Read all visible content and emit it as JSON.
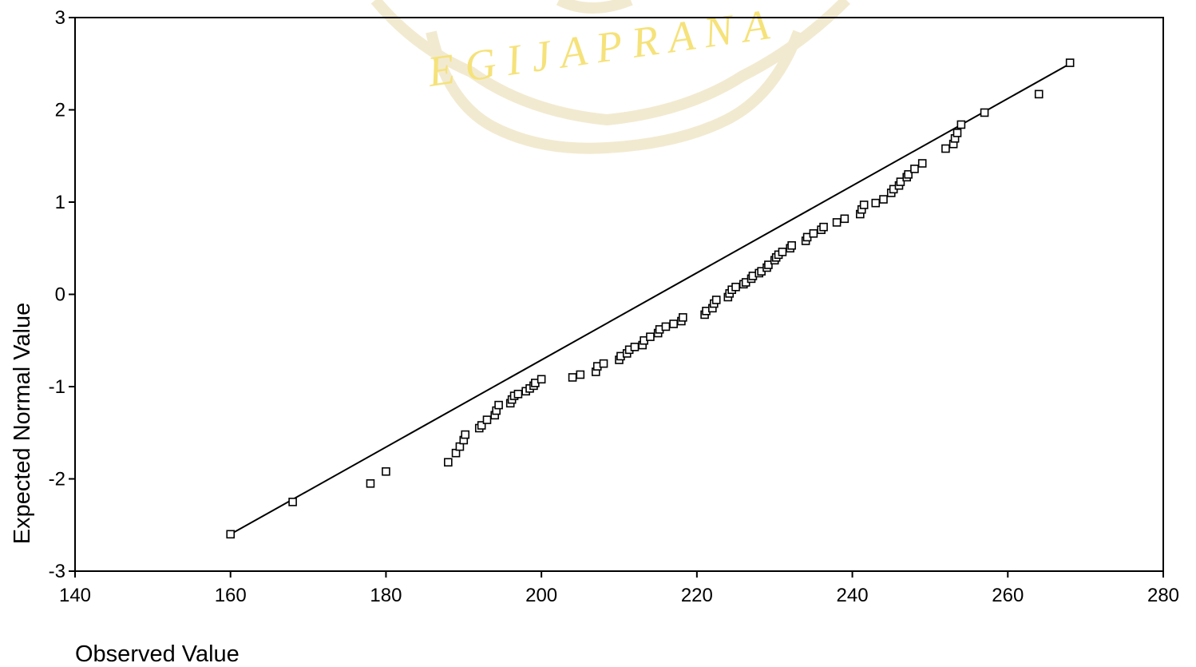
{
  "watermark": {
    "text": "EGIJAPRANA",
    "color": "#f5e27a"
  },
  "chart_data": {
    "type": "scatter",
    "title": "",
    "xlabel": "Observed Value",
    "ylabel": "Expected Normal Value",
    "xlim": [
      140,
      280
    ],
    "ylim": [
      -3,
      3
    ],
    "xticks": [
      140,
      160,
      180,
      200,
      220,
      240,
      260,
      280
    ],
    "yticks": [
      -3,
      -2,
      -1,
      0,
      1,
      2,
      3
    ],
    "xtick_labels": [
      "140",
      "160",
      "180",
      "200",
      "220",
      "240",
      "260",
      "280"
    ],
    "ytick_labels": [
      "-3",
      "-2",
      "-1",
      "0",
      "1",
      "2",
      "3"
    ],
    "grid": false,
    "marker": "open-square",
    "reference_line": {
      "x": [
        160,
        268
      ],
      "y": [
        -2.6,
        2.5
      ]
    },
    "x": [
      160,
      168,
      178,
      180,
      188,
      189,
      189.5,
      190,
      190.2,
      192,
      192.3,
      193,
      194,
      194.2,
      194.5,
      196,
      196.2,
      196.5,
      197,
      198,
      198.5,
      199,
      199.2,
      200,
      204,
      205,
      207,
      207.2,
      208,
      210,
      210.2,
      211,
      211.3,
      212,
      213,
      213.2,
      214,
      215,
      215.2,
      216,
      217,
      218,
      218.2,
      221,
      221.2,
      222,
      222.2,
      222.5,
      224,
      224.2,
      224.5,
      225,
      226,
      226.3,
      227,
      227.2,
      228,
      228.3,
      229,
      229.2,
      230,
      230.2,
      230.5,
      231,
      232,
      232.2,
      234,
      234.2,
      235,
      236,
      236.3,
      238,
      239,
      241,
      241.2,
      241.5,
      243,
      244,
      245,
      245.3,
      246,
      246.2,
      247,
      247.2,
      248,
      249,
      252,
      253,
      253.2,
      253.5,
      254,
      257,
      264,
      268
    ],
    "y": [
      -2.6,
      -2.25,
      -2.05,
      -1.92,
      -1.82,
      -1.72,
      -1.65,
      -1.58,
      -1.52,
      -1.45,
      -1.42,
      -1.36,
      -1.31,
      -1.26,
      -1.2,
      -1.18,
      -1.14,
      -1.1,
      -1.08,
      -1.05,
      -1.02,
      -0.99,
      -0.96,
      -0.92,
      -0.9,
      -0.87,
      -0.84,
      -0.78,
      -0.75,
      -0.71,
      -0.67,
      -0.64,
      -0.6,
      -0.57,
      -0.55,
      -0.5,
      -0.46,
      -0.42,
      -0.38,
      -0.35,
      -0.32,
      -0.29,
      -0.25,
      -0.22,
      -0.18,
      -0.15,
      -0.1,
      -0.06,
      -0.03,
      0.01,
      0.05,
      0.08,
      0.11,
      0.13,
      0.17,
      0.2,
      0.23,
      0.25,
      0.29,
      0.32,
      0.37,
      0.4,
      0.43,
      0.46,
      0.5,
      0.53,
      0.58,
      0.62,
      0.66,
      0.7,
      0.73,
      0.78,
      0.82,
      0.87,
      0.92,
      0.97,
      0.99,
      1.03,
      1.1,
      1.14,
      1.18,
      1.22,
      1.27,
      1.3,
      1.36,
      1.42,
      1.58,
      1.63,
      1.69,
      1.75,
      1.84,
      1.97,
      2.17,
      2.51
    ]
  }
}
